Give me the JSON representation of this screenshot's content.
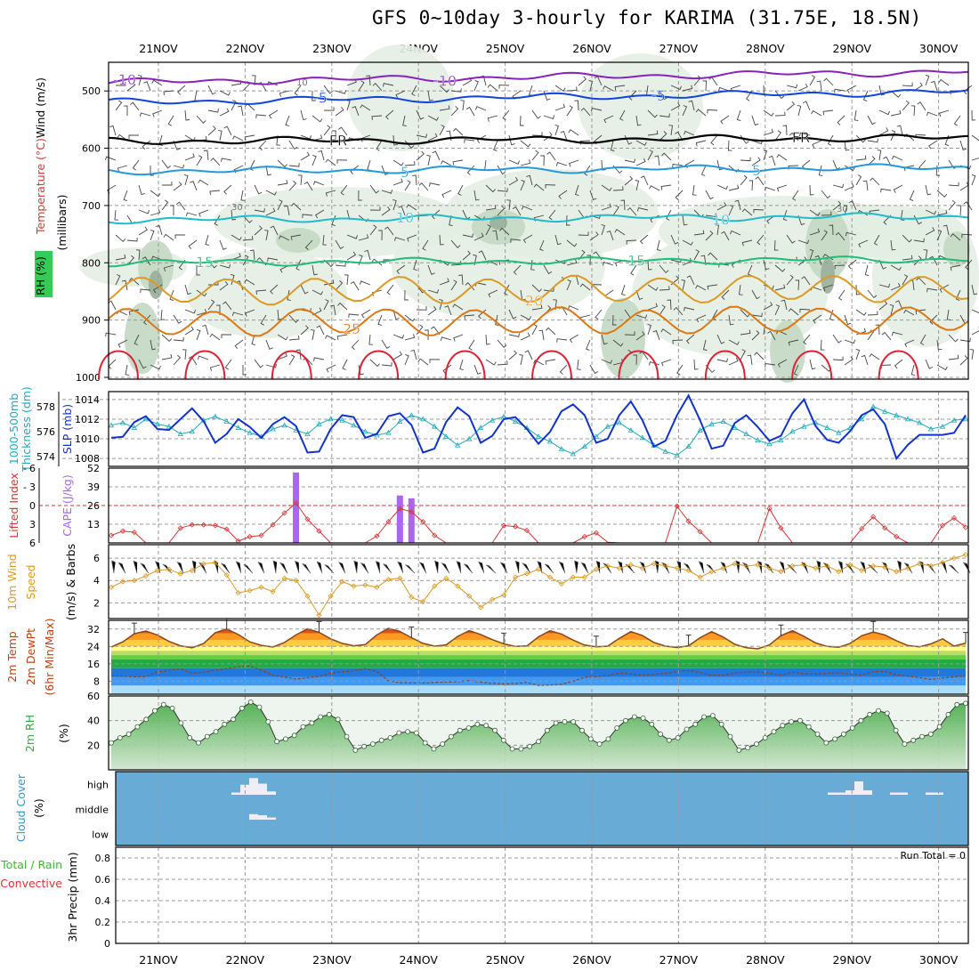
{
  "title": "GFS 0~10day 3-hourly for KARIMA (31.75E, 18.5N)",
  "colors": {
    "frame": "#000000",
    "grid": "#999999",
    "rh_light": "#e3eee3",
    "rh_mid": "#c3d8c3",
    "rh_dark": "#9aaf9a",
    "thickness": "#22aabb",
    "slp": "#1133cc",
    "lifted": "#dd3333",
    "cape": "#aa66ee",
    "wind10": "#dd9922",
    "barb": "#555555",
    "temp_max": "#c04010",
    "dew": "#884422",
    "rh_fill": "#66bb66",
    "cloud_bg": "#68abd6",
    "cloud_fill": "#eeeef6"
  },
  "chart_data": [
    {
      "type": "contour",
      "panel": "upper-air",
      "ylabel_parts": [
        "Wind (m/s)",
        "Temperature (°C)",
        "RH (%)",
        "(millibars)"
      ],
      "y_ticks": [
        "500",
        "600",
        "700",
        "800",
        "900",
        "1000"
      ],
      "ylim": [
        1000,
        450
      ],
      "temperature_contours": [
        {
          "label": "-10",
          "level_mb": 485,
          "color": "#8822bb"
        },
        {
          "label": "-5",
          "level_mb": 520,
          "color": "#1144dd"
        },
        {
          "label": "FR",
          "level_mb": 588,
          "color": "#000000"
        },
        {
          "label": "5",
          "level_mb": 640,
          "color": "#2299dd"
        },
        {
          "label": "10",
          "level_mb": 725,
          "color": "#22bbcc"
        },
        {
          "label": "15",
          "level_mb": 800,
          "color": "#22bb77"
        },
        {
          "label": "20",
          "level_mb": 850,
          "color": "#dd9922"
        },
        {
          "label": "25",
          "level_mb": 905,
          "color": "#dd7711"
        }
      ],
      "rh_contour_labels": [
        "10",
        "30"
      ]
    },
    {
      "type": "line",
      "panel": "thickness-slp",
      "ylabel_left": [
        "1000-500mb",
        "Thickness (dm)"
      ],
      "ylabel_right": "SLP (mb)",
      "left_ticks": [
        "578",
        "576",
        "574"
      ],
      "right_ticks": [
        "1014",
        "1012",
        "1010",
        "1008"
      ],
      "ylim_left": [
        573.2,
        579.2
      ],
      "ylim_right": [
        1007.2,
        1014.8
      ],
      "series": [
        {
          "name": "Thickness (dm)",
          "axis": "left",
          "values": [
            576.5,
            576.7,
            576.3,
            577.0,
            576.6,
            576.4,
            575.8,
            576.0,
            576.9,
            577.2,
            576.8,
            576.3,
            575.9,
            575.6,
            576.2,
            576.5,
            576.1,
            575.8,
            576.6,
            577.0,
            576.9,
            576.5,
            576.0,
            575.7,
            575.9,
            576.8,
            577.3,
            577.0,
            576.4,
            575.6,
            574.9,
            575.4,
            576.3,
            576.9,
            577.2,
            576.8,
            576.3,
            575.6,
            575.2,
            574.6,
            574.2,
            574.8,
            575.6,
            576.4,
            576.7,
            576.1,
            575.5,
            574.9,
            574.4,
            574.1,
            574.8,
            576.1,
            576.6,
            576.8,
            576.3,
            575.8,
            575.3,
            575.0,
            575.3,
            576.0,
            576.4,
            576.7,
            576.3,
            575.9,
            576.3,
            577.0,
            578.0,
            577.6,
            577.3,
            577.0,
            576.7,
            576.2,
            576.4,
            576.9,
            577.0
          ]
        },
        {
          "name": "SLP (mb)",
          "axis": "right",
          "values": [
            1010.1,
            1010.2,
            1011.7,
            1012.3,
            1011.0,
            1010.9,
            1012.0,
            1013.1,
            1011.8,
            1009.6,
            1010.5,
            1012.0,
            1011.2,
            1010.1,
            1011.5,
            1012.2,
            1011.3,
            1008.6,
            1008.7,
            1011.0,
            1012.4,
            1012.2,
            1010.1,
            1010.5,
            1012.3,
            1012.6,
            1011.4,
            1008.6,
            1009.0,
            1011.7,
            1013.2,
            1012.3,
            1009.6,
            1010.3,
            1012.0,
            1012.2,
            1011.0,
            1009.5,
            1010.7,
            1012.8,
            1013.5,
            1012.4,
            1009.6,
            1010.0,
            1012.4,
            1013.8,
            1011.9,
            1009.2,
            1009.8,
            1012.4,
            1014.4,
            1011.9,
            1009.0,
            1009.3,
            1011.6,
            1012.4,
            1011.2,
            1009.8,
            1010.3,
            1012.6,
            1014.0,
            1011.3,
            1009.9,
            1009.6,
            1010.8,
            1012.4,
            1013.0,
            1011.5,
            1008.0,
            1009.4,
            1010.4,
            1010.4,
            1010.4,
            1010.6,
            1012.4
          ]
        }
      ]
    },
    {
      "type": "bar+line",
      "panel": "lifted-cape",
      "ylabel_left": "Lifted Index",
      "ylabel_right": "CAPE (J/kg)",
      "left_ticks": [
        "-6",
        "-3",
        "0",
        "3",
        "6"
      ],
      "right_ticks": [
        "52",
        "39",
        "26",
        "13"
      ],
      "ylim_left": [
        6,
        -6
      ],
      "ylim_right": [
        0,
        52
      ],
      "lifted_index": [
        4.8,
        4.1,
        4.3,
        6.0,
        6.0,
        6.0,
        3.6,
        3.1,
        3.1,
        3.2,
        3.8,
        5.7,
        5.0,
        4.8,
        3.1,
        1.2,
        -0.4,
        2.2,
        4.1,
        6.0,
        6.0,
        6.0,
        6.0,
        4.9,
        2.6,
        0.5,
        1.0,
        2.6,
        4.8,
        6.0,
        6.0,
        6.0,
        6.0,
        6.0,
        3.2,
        3.4,
        4.0,
        6.0,
        6.0,
        6.0,
        6.0,
        5.0,
        4.4,
        5.9,
        6.0,
        6.0,
        6.0,
        6.0,
        6.0,
        0.1,
        2.5,
        4.2,
        6.0,
        6.0,
        6.0,
        6.0,
        6.0,
        0.5,
        3.6,
        6.0,
        6.0,
        6.0,
        6.0,
        6.0,
        6.0,
        3.7,
        1.8,
        3.6,
        5.0,
        6.0,
        6.0,
        6.0,
        3.2,
        2.0,
        3.5
      ],
      "cape_bars": [
        {
          "x_index": 16,
          "value": 49
        },
        {
          "x_index": 25,
          "value": 33
        },
        {
          "x_index": 26,
          "value": 31
        }
      ]
    },
    {
      "type": "line",
      "panel": "wind10m",
      "ylabel": [
        "10m Wind",
        "Speed",
        "(m/s) & Barbs"
      ],
      "y_ticks": [
        "6",
        "4",
        "2"
      ],
      "ylim": [
        0.6,
        7.2
      ],
      "values": [
        3.4,
        3.9,
        4.0,
        4.4,
        4.9,
        5.0,
        4.6,
        4.9,
        5.5,
        5.6,
        4.5,
        2.9,
        3.1,
        3.4,
        3.0,
        4.2,
        4.0,
        2.6,
        0.9,
        2.6,
        3.9,
        3.5,
        3.6,
        3.4,
        4.1,
        4.2,
        2.5,
        2.1,
        3.5,
        4.2,
        3.5,
        2.6,
        1.6,
        2.3,
        2.7,
        4.3,
        4.6,
        5.0,
        4.3,
        3.7,
        4.3,
        4.3,
        5.0,
        5.3,
        5.1,
        5.4,
        5.1,
        5.5,
        5.3,
        5.1,
        4.9,
        4.3,
        4.8,
        5.1,
        5.5,
        5.3,
        5.4,
        5.1,
        4.8,
        5.3,
        5.4,
        5.1,
        5.3,
        4.8,
        5.4,
        4.9,
        5.3,
        5.2,
        4.8,
        5.1,
        5.5,
        5.3,
        5.6,
        6.0,
        6.3
      ]
    },
    {
      "type": "area",
      "panel": "temp-dewpoint",
      "ylabel": [
        "2m Temp",
        "2m DewPt",
        "(6hr Min/Max)"
      ],
      "y_ticks": [
        "32",
        "24",
        "16",
        "8"
      ],
      "ylim": [
        2,
        36
      ],
      "temp_max": [
        23.7,
        26.1,
        29.8,
        31.1,
        29.2,
        26.3,
        24.3,
        23.4,
        25.3,
        30.3,
        32.0,
        29.5,
        26.1,
        24.5,
        23.7,
        25.8,
        29.3,
        32.1,
        30.5,
        27.5,
        25.4,
        24.3,
        24.8,
        29.3,
        32.3,
        30.9,
        28.0,
        25.4,
        24.1,
        24.7,
        28.6,
        31.3,
        29.5,
        27.1,
        25.2,
        24.0,
        24.2,
        28.4,
        31.2,
        29.7,
        26.9,
        24.6,
        23.8,
        24.1,
        27.7,
        30.8,
        29.0,
        25.8,
        24.1,
        23.5,
        24.3,
        28.0,
        30.8,
        28.3,
        25.0,
        23.4,
        22.9,
        24.7,
        28.9,
        31.2,
        28.6,
        25.6,
        24.0,
        23.6,
        25.4,
        28.9,
        30.6,
        29.3,
        26.6,
        24.4,
        23.8,
        25.2,
        27.5,
        24.1,
        25.5
      ],
      "dew_point": [
        10.5,
        10.3,
        10.0,
        10.1,
        12.3,
        12.9,
        13.7,
        11.6,
        12.1,
        13.0,
        13.7,
        14.6,
        14.9,
        13.1,
        10.7,
        9.9,
        8.9,
        9.6,
        10.1,
        11.7,
        12.3,
        12.9,
        13.7,
        12.5,
        8.2,
        7.3,
        7.2,
        7.1,
        7.4,
        7.6,
        7.7,
        8.3,
        7.5,
        7.0,
        6.7,
        6.9,
        7.4,
        6.0,
        6.2,
        6.6,
        8.0,
        9.8,
        10.1,
        10.5,
        11.7,
        11.3,
        10.8,
        11.1,
        11.5,
        12.5,
        12.9,
        12.0,
        10.6,
        10.7,
        11.7,
        12.2,
        12.2,
        11.6,
        10.8,
        12.1,
        11.4,
        11.3,
        11.6,
        11.9,
        11.2,
        10.8,
        12.4,
        12.5,
        10.9,
        10.3,
        9.6,
        8.8,
        9.4,
        10.0,
        10.3
      ]
    },
    {
      "type": "area",
      "panel": "rh2m",
      "ylabel": [
        "2m RH",
        "(%)"
      ],
      "y_ticks": [
        "60",
        "40",
        "20"
      ],
      "ylim": [
        0,
        60
      ],
      "values": [
        22,
        26,
        29,
        35,
        41,
        48,
        53,
        50,
        38,
        26,
        22,
        27,
        31,
        37,
        41,
        50,
        55,
        51,
        39,
        23,
        25,
        28,
        35,
        38,
        43,
        45,
        41,
        27,
        16,
        19,
        21,
        24,
        26,
        30,
        31,
        30,
        22,
        17,
        21,
        27,
        32,
        34,
        37,
        36,
        32,
        24,
        17,
        17,
        19,
        23,
        32,
        38,
        39,
        39,
        32,
        25,
        21,
        25,
        34,
        40,
        43,
        42,
        37,
        29,
        24,
        26,
        33,
        37,
        43,
        44,
        37,
        27,
        16,
        18,
        21,
        26,
        31,
        36,
        39,
        40,
        35,
        29,
        22,
        25,
        29,
        34,
        40,
        45,
        48,
        46,
        32,
        21,
        24,
        27,
        29,
        35,
        45,
        53,
        54
      ]
    },
    {
      "type": "area",
      "panel": "cloud-cover",
      "ylabel": [
        "Cloud Cover",
        "(%)"
      ],
      "y_ticks": [
        "high",
        "middle",
        "low"
      ],
      "high": [
        [
          14,
          10
        ],
        [
          15,
          45
        ],
        [
          16,
          75
        ],
        [
          17,
          50
        ],
        [
          18,
          15
        ],
        [
          81,
          10
        ],
        [
          82,
          10
        ],
        [
          83,
          20
        ],
        [
          84,
          60
        ],
        [
          85,
          20
        ],
        [
          88,
          10
        ],
        [
          89,
          10
        ],
        [
          92,
          10
        ],
        [
          93,
          10
        ]
      ],
      "middle": [
        [
          16,
          25
        ],
        [
          17,
          20
        ],
        [
          18,
          10
        ]
      ],
      "low": []
    },
    {
      "type": "bar",
      "panel": "precip",
      "ylabel": [
        "Total / Rain",
        "Convective",
        "3hr Precip (mm)"
      ],
      "y_ticks": [
        "0.8",
        "0.6",
        "0.4",
        "0.2",
        "0"
      ],
      "ylim": [
        0,
        0.9
      ],
      "run_total": "Run Total = 0",
      "values": []
    }
  ],
  "x_axis": {
    "dates": [
      "21NOV",
      "22NOV",
      "23NOV",
      "24NOV",
      "25NOV",
      "26NOV",
      "27NOV",
      "28NOV",
      "29NOV",
      "30NOV"
    ]
  }
}
